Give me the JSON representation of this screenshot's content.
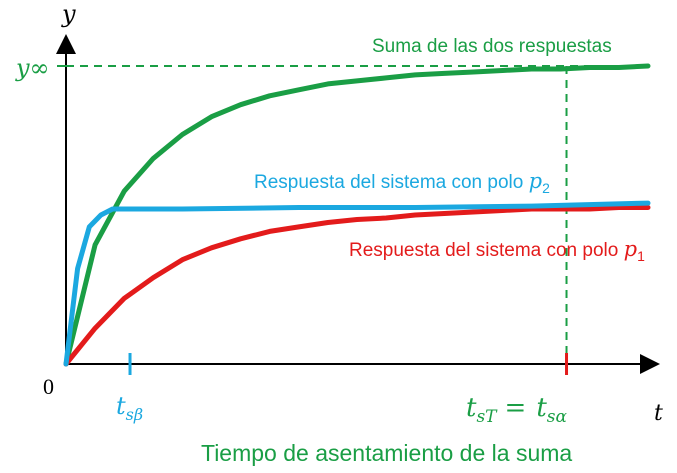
{
  "chart_data": {
    "type": "line",
    "title": "",
    "xlabel": "t",
    "ylabel": "y",
    "origin_label": "0",
    "x_range": [
      0,
      10
    ],
    "y_range": [
      0,
      1
    ],
    "reference_line": {
      "label": "y∞",
      "value": 1.0
    },
    "series": [
      {
        "name": "Suma de las dos respuestas",
        "color": "#1a9e45",
        "x": [
          0,
          0.5,
          1,
          1.5,
          2,
          2.5,
          3,
          3.5,
          4,
          4.5,
          5,
          5.5,
          6,
          6.5,
          7,
          7.5,
          8,
          8.5,
          9,
          9.5,
          10
        ],
        "values": [
          0,
          0.4,
          0.58,
          0.69,
          0.77,
          0.83,
          0.87,
          0.9,
          0.92,
          0.94,
          0.95,
          0.96,
          0.97,
          0.975,
          0.98,
          0.985,
          0.99,
          0.99,
          0.995,
          0.995,
          1.0
        ]
      },
      {
        "name": "Respuesta del sistema con polo p2",
        "color": "#1ba8e0",
        "x": [
          0,
          0.2,
          0.4,
          0.6,
          0.8,
          1,
          2,
          4,
          6,
          8,
          10
        ],
        "values": [
          0,
          0.32,
          0.46,
          0.5,
          0.52,
          0.52,
          0.52,
          0.525,
          0.525,
          0.53,
          0.54
        ]
      },
      {
        "name": "Respuesta del sistema con polo p1",
        "color": "#e31b1b",
        "x": [
          0,
          0.5,
          1,
          1.5,
          2,
          2.5,
          3,
          3.5,
          4,
          4.5,
          5,
          5.5,
          6,
          6.5,
          7,
          7.5,
          8,
          8.5,
          9,
          9.5,
          10
        ],
        "values": [
          0,
          0.12,
          0.22,
          0.29,
          0.35,
          0.39,
          0.42,
          0.445,
          0.46,
          0.475,
          0.485,
          0.49,
          0.5,
          0.505,
          0.51,
          0.515,
          0.52,
          0.52,
          0.52,
          0.525,
          0.525
        ]
      }
    ],
    "markers": [
      {
        "label_base": "t",
        "label_sub": "sβ",
        "x": 1.1,
        "color": "#1ba8e0"
      },
      {
        "label_base": "t",
        "label_sub": "sT",
        "x": 8.6,
        "color": "#e31b1b"
      }
    ],
    "annotations": {
      "sum": "Suma de las dos respuestas",
      "p2_prefix": "Respuesta del sistema con polo ",
      "p2_pole": "p",
      "p2_sub": "2",
      "p1_prefix": "Respuesta del sistema con polo ",
      "p1_pole": "p",
      "p1_sub": "1",
      "settling_eq_sign": "=",
      "settling_rhs_base": "t",
      "settling_rhs_sub": "sα",
      "caption": "Tiempo de asentamiento de la suma"
    }
  }
}
